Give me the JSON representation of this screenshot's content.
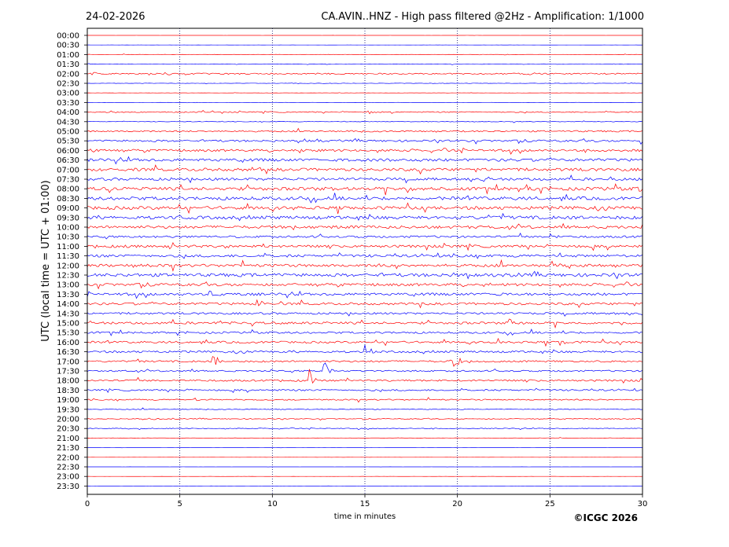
{
  "header": {
    "date": "24-02-2026",
    "title": "CA.AVIN..HNZ - High pass filtered @2Hz - Amplification: 1/1000"
  },
  "footer": {
    "copyright": "©ICGC 2026"
  },
  "chart_data": {
    "type": "line",
    "title": "CA.AVIN..HNZ - High pass filtered @2Hz - Amplification: 1/1000",
    "xlabel": "time in minutes",
    "ylabel": "UTC (local time = UTC + 01:00)",
    "xlim": [
      0,
      30
    ],
    "x_ticks": [
      0,
      5,
      10,
      15,
      20,
      25,
      30
    ],
    "x_tick_labels": [
      "0",
      "5",
      "10",
      "15",
      "20",
      "25",
      "30"
    ],
    "rows": [
      "00:00",
      "00:30",
      "01:00",
      "01:30",
      "02:00",
      "02:30",
      "03:00",
      "03:30",
      "04:00",
      "04:30",
      "05:00",
      "05:30",
      "06:00",
      "06:30",
      "07:00",
      "07:30",
      "08:00",
      "08:30",
      "09:00",
      "09:30",
      "10:00",
      "10:30",
      "11:00",
      "11:30",
      "12:00",
      "12:30",
      "13:00",
      "13:30",
      "14:00",
      "14:30",
      "15:00",
      "15:30",
      "16:00",
      "16:30",
      "17:00",
      "17:30",
      "18:00",
      "18:30",
      "19:00",
      "19:30",
      "20:00",
      "20:30",
      "21:00",
      "21:30",
      "22:00",
      "22:30",
      "23:00",
      "23:30"
    ],
    "row_colors": [
      "#ff0000",
      "#0000ff"
    ],
    "vertical_gridlines": [
      5,
      10,
      15,
      20,
      25
    ],
    "noise_level": [
      0.05,
      0.05,
      0.3,
      0.3,
      1.0,
      0.3,
      0.15,
      0.15,
      0.8,
      0.4,
      1.2,
      1.5,
      1.8,
      2.2,
      2.2,
      2.0,
      2.5,
      2.5,
      2.5,
      2.5,
      2.2,
      1.6,
      2.0,
      2.0,
      2.2,
      2.5,
      2.0,
      2.0,
      1.8,
      1.5,
      1.8,
      1.5,
      1.6,
      1.6,
      1.4,
      1.2,
      1.4,
      1.2,
      1.0,
      0.6,
      0.6,
      0.6,
      0.3,
      0.05,
      0.05,
      0.05,
      0.05,
      0.05
    ],
    "events": [
      {
        "row": "01:00",
        "minute": 22.5,
        "amplitude": 1.5
      },
      {
        "row": "02:00",
        "minute": 0.3,
        "amplitude": 4
      },
      {
        "row": "02:00",
        "minute": 4.2,
        "amplitude": 4
      },
      {
        "row": "02:00",
        "minute": 23.8,
        "amplitude": 3
      },
      {
        "row": "04:00",
        "minute": 1.4,
        "amplitude": 5
      },
      {
        "row": "04:00",
        "minute": 15.2,
        "amplitude": 3
      },
      {
        "row": "05:30",
        "minute": 12.4,
        "amplitude": 3
      },
      {
        "row": "05:30",
        "minute": 29.9,
        "amplitude": 6
      },
      {
        "row": "06:00",
        "minute": 0.2,
        "amplitude": 4
      },
      {
        "row": "07:00",
        "minute": 8.8,
        "amplitude": 3
      },
      {
        "row": "07:30",
        "minute": 27.5,
        "amplitude": 3
      },
      {
        "row": "08:00",
        "minute": 1.2,
        "amplitude": 4
      },
      {
        "row": "08:00",
        "minute": 17.3,
        "amplitude": 6
      },
      {
        "row": "08:00",
        "minute": 23.2,
        "amplitude": 6
      },
      {
        "row": "08:00",
        "minute": 29.8,
        "amplitude": 4
      },
      {
        "row": "09:00",
        "minute": 11.0,
        "amplitude": 3
      },
      {
        "row": "09:30",
        "minute": 21.6,
        "amplitude": 4
      },
      {
        "row": "10:00",
        "minute": 14.6,
        "amplitude": 3
      },
      {
        "row": "10:30",
        "minute": 25.0,
        "amplitude": 4
      },
      {
        "row": "11:00",
        "minute": 7.2,
        "amplitude": 3
      },
      {
        "row": "11:00",
        "minute": 9.5,
        "amplitude": 4
      },
      {
        "row": "12:00",
        "minute": 15.8,
        "amplitude": 3
      },
      {
        "row": "12:00",
        "minute": 25.1,
        "amplitude": 5
      },
      {
        "row": "12:00",
        "minute": 26.0,
        "amplitude": 4
      },
      {
        "row": "12:30",
        "minute": 19.6,
        "amplitude": 5
      },
      {
        "row": "13:00",
        "minute": 21.4,
        "amplitude": 3
      },
      {
        "row": "13:30",
        "minute": 6.6,
        "amplitude": 4
      },
      {
        "row": "13:30",
        "minute": 22.1,
        "amplitude": 3
      },
      {
        "row": "14:00",
        "minute": 9.2,
        "amplitude": 11
      },
      {
        "row": "15:00",
        "minute": 22.8,
        "amplitude": 10
      },
      {
        "row": "16:00",
        "minute": 25.5,
        "amplitude": 9
      },
      {
        "row": "16:30",
        "minute": 15.0,
        "amplitude": 10
      },
      {
        "row": "17:00",
        "minute": 6.8,
        "amplitude": 12
      },
      {
        "row": "17:00",
        "minute": 19.7,
        "amplitude": 24
      },
      {
        "row": "17:30",
        "minute": 12.8,
        "amplitude": 18
      },
      {
        "row": "18:00",
        "minute": 12.0,
        "amplitude": 16
      },
      {
        "row": "19:00",
        "minute": 5.8,
        "amplitude": 3
      },
      {
        "row": "20:00",
        "minute": 3.6,
        "amplitude": 2
      },
      {
        "row": "20:30",
        "minute": 2.8,
        "amplitude": 2
      }
    ]
  }
}
